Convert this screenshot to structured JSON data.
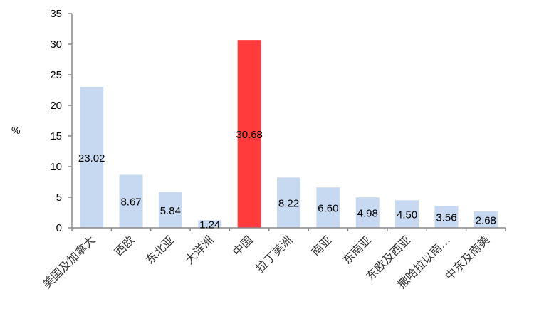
{
  "chart_data": {
    "type": "bar",
    "title": "",
    "xlabel": "",
    "ylabel": "%",
    "ylim": [
      0,
      35
    ],
    "yticks": [
      0,
      5,
      10,
      15,
      20,
      25,
      30,
      35
    ],
    "grid": false,
    "legend": "none",
    "categories": [
      "美国及加拿大",
      "西欧",
      "东北亚",
      "大洋洲",
      "中国",
      "拉丁美洲",
      "南亚",
      "东南亚",
      "东欧及西亚",
      "撒哈拉以南…",
      "中东及南美"
    ],
    "values": [
      23.02,
      8.67,
      5.84,
      1.24,
      30.68,
      8.22,
      6.6,
      4.98,
      4.5,
      3.56,
      2.68
    ],
    "data_labels": [
      "23.02",
      "8.67",
      "5.84",
      "1.24",
      "30.68",
      "8.22",
      "6.60",
      "4.98",
      "4.50",
      "3.56",
      "2.68"
    ],
    "highlight_index": 4,
    "colors": {
      "bar": "#c6d9f0",
      "highlight": "#ff3b3b",
      "axis": "#888888"
    }
  }
}
